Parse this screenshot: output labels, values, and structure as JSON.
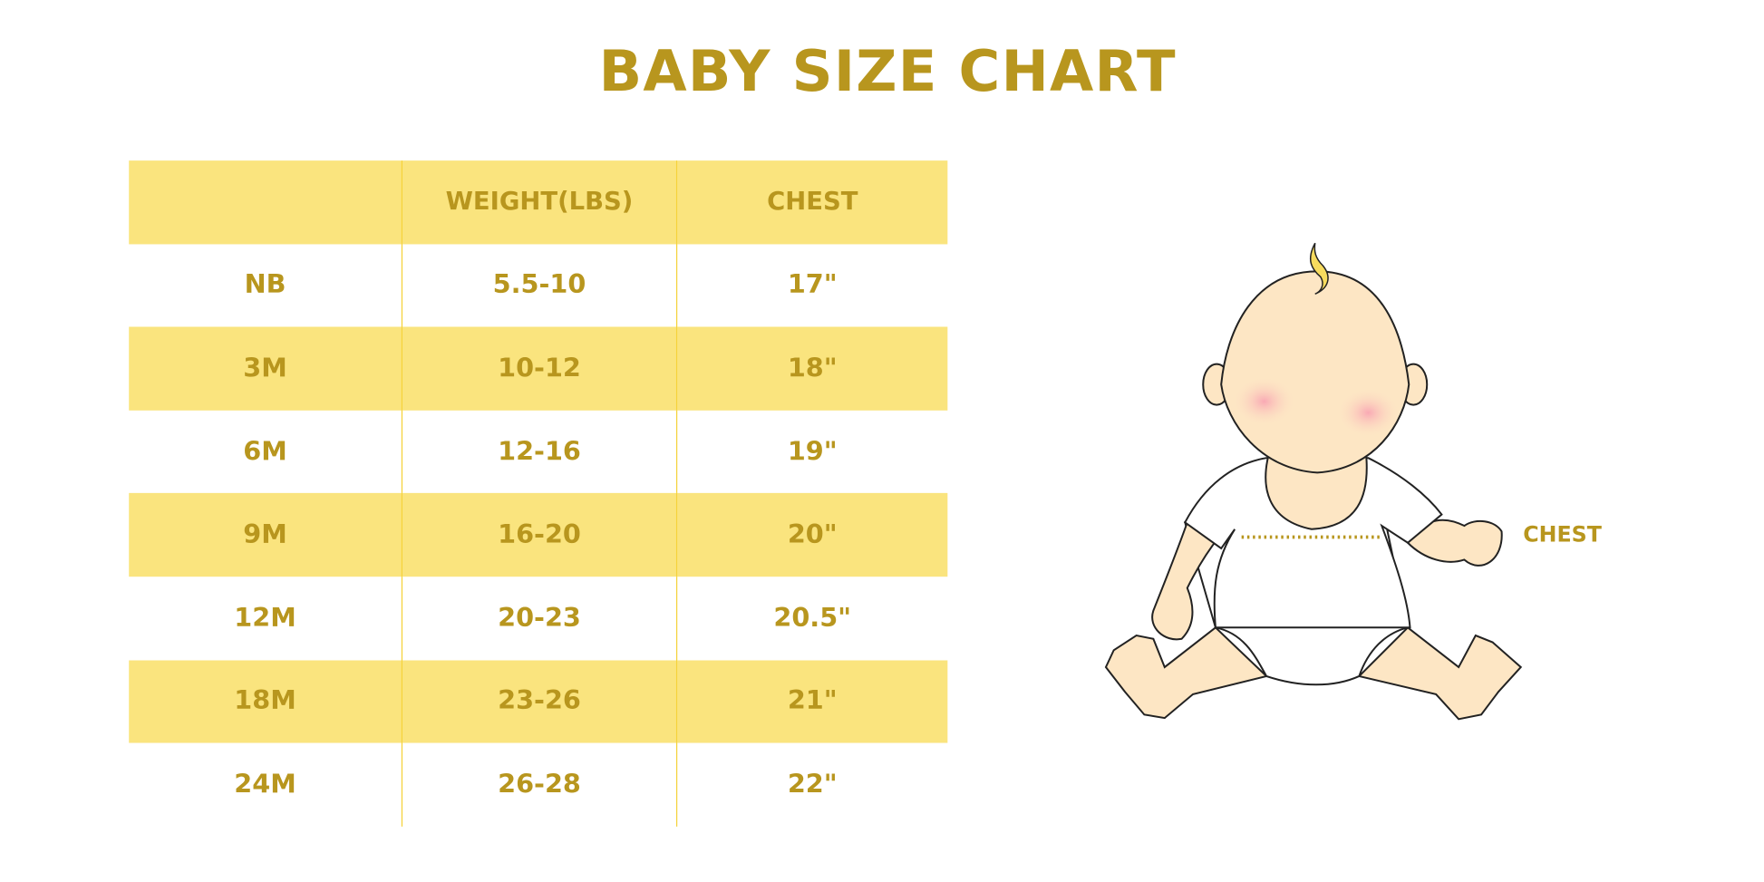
{
  "title": "BABY SIZE CHART",
  "colors": {
    "text": "#B8961E",
    "row_fill": "#FAE47E",
    "divider": "#F5D23A"
  },
  "table": {
    "headers": [
      "",
      "WEIGHT(LBS)",
      "CHEST"
    ],
    "rows": [
      {
        "size": "NB",
        "weight": "5.5-10",
        "chest": "17\""
      },
      {
        "size": "3M",
        "weight": "10-12",
        "chest": "18\""
      },
      {
        "size": "6M",
        "weight": "12-16",
        "chest": "19\""
      },
      {
        "size": "9M",
        "weight": "16-20",
        "chest": "20\""
      },
      {
        "size": "12M",
        "weight": "20-23",
        "chest": "20.5\""
      },
      {
        "size": "18M",
        "weight": "23-26",
        "chest": "21\""
      },
      {
        "size": "24M",
        "weight": "26-28",
        "chest": "22\""
      }
    ]
  },
  "illustration": {
    "chest_label": "CHEST",
    "icon": "baby-illustration"
  }
}
